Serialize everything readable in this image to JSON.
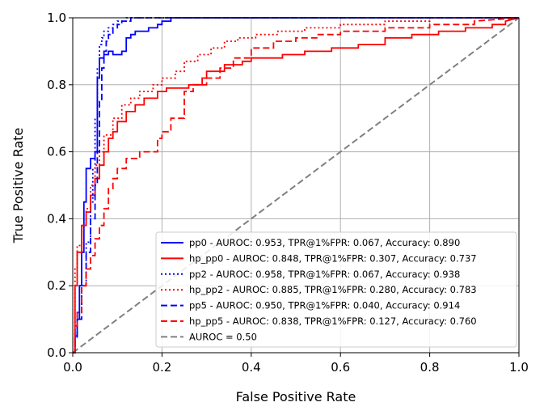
{
  "chart_data": {
    "type": "line",
    "title": "",
    "xlabel": "False Positive Rate",
    "ylabel": "True Positive Rate",
    "xlim": [
      0.0,
      1.0
    ],
    "ylim": [
      0.0,
      1.0
    ],
    "grid": true,
    "legend_position": "lower-right",
    "xticks": [
      "0.0",
      "0.2",
      "0.4",
      "0.6",
      "0.8",
      "1.0"
    ],
    "yticks": [
      "0.0",
      "0.2",
      "0.4",
      "0.6",
      "0.8",
      "1.0"
    ],
    "series": [
      {
        "name": "pp0 - AUROC: 0.953, TPR@1%FPR: 0.067, Accuracy: 0.890",
        "color": "#0000ff",
        "style": "solid",
        "x": [
          0,
          0.005,
          0.005,
          0.01,
          0.01,
          0.015,
          0.015,
          0.02,
          0.02,
          0.025,
          0.025,
          0.03,
          0.03,
          0.04,
          0.04,
          0.05,
          0.05,
          0.055,
          0.055,
          0.06,
          0.06,
          0.07,
          0.07,
          0.08,
          0.08,
          0.09,
          0.09,
          0.11,
          0.11,
          0.12,
          0.12,
          0.13,
          0.13,
          0.14,
          0.14,
          0.17,
          0.17,
          0.19,
          0.19,
          0.2,
          0.2,
          0.22,
          0.22,
          0.27,
          1.0
        ],
        "y": [
          0,
          0,
          0.05,
          0.05,
          0.1,
          0.1,
          0.2,
          0.2,
          0.3,
          0.3,
          0.45,
          0.45,
          0.55,
          0.55,
          0.58,
          0.58,
          0.6,
          0.6,
          0.82,
          0.82,
          0.88,
          0.88,
          0.89,
          0.89,
          0.9,
          0.9,
          0.89,
          0.89,
          0.9,
          0.9,
          0.94,
          0.94,
          0.95,
          0.95,
          0.96,
          0.96,
          0.97,
          0.97,
          0.98,
          0.98,
          0.99,
          0.99,
          1.0,
          1.0,
          1.0
        ]
      },
      {
        "name": "hp_pp0 - AUROC: 0.848, TPR@1%FPR: 0.307, Accuracy: 0.737",
        "color": "#ff0000",
        "style": "solid",
        "x": [
          0,
          0.005,
          0.005,
          0.01,
          0.01,
          0.02,
          0.02,
          0.03,
          0.03,
          0.04,
          0.04,
          0.05,
          0.05,
          0.06,
          0.06,
          0.07,
          0.07,
          0.08,
          0.08,
          0.09,
          0.09,
          0.1,
          0.1,
          0.12,
          0.12,
          0.14,
          0.14,
          0.16,
          0.16,
          0.19,
          0.19,
          0.21,
          0.21,
          0.26,
          0.26,
          0.29,
          0.29,
          0.3,
          0.3,
          0.34,
          0.34,
          0.38,
          0.38,
          0.4,
          0.4,
          0.43,
          0.43,
          0.47,
          0.47,
          0.52,
          0.52,
          0.58,
          0.58,
          0.64,
          0.64,
          0.7,
          0.7,
          0.76,
          0.76,
          0.82,
          0.82,
          0.88,
          0.88,
          0.94,
          0.94,
          0.97,
          0.97,
          1.0
        ],
        "y": [
          0,
          0,
          0.2,
          0.2,
          0.3,
          0.3,
          0.38,
          0.38,
          0.42,
          0.42,
          0.47,
          0.47,
          0.52,
          0.52,
          0.56,
          0.56,
          0.6,
          0.6,
          0.64,
          0.64,
          0.66,
          0.66,
          0.69,
          0.69,
          0.72,
          0.72,
          0.74,
          0.74,
          0.76,
          0.76,
          0.78,
          0.78,
          0.79,
          0.79,
          0.8,
          0.8,
          0.82,
          0.82,
          0.84,
          0.84,
          0.86,
          0.86,
          0.87,
          0.87,
          0.88,
          0.88,
          0.88,
          0.88,
          0.89,
          0.89,
          0.9,
          0.9,
          0.91,
          0.91,
          0.92,
          0.92,
          0.94,
          0.94,
          0.95,
          0.95,
          0.96,
          0.96,
          0.97,
          0.97,
          0.98,
          0.98,
          0.99,
          1.0
        ]
      },
      {
        "name": "pp2 - AUROC: 0.958, TPR@1%FPR: 0.067, Accuracy: 0.938",
        "color": "#0000ff",
        "style": "dotted",
        "x": [
          0,
          0.005,
          0.005,
          0.01,
          0.01,
          0.02,
          0.02,
          0.03,
          0.03,
          0.04,
          0.04,
          0.045,
          0.045,
          0.05,
          0.05,
          0.055,
          0.055,
          0.06,
          0.06,
          0.065,
          0.065,
          0.07,
          0.07,
          0.08,
          0.08,
          0.09,
          0.09,
          0.1,
          0.1,
          0.12,
          0.12,
          0.15,
          0.15,
          1.0
        ],
        "y": [
          0,
          0,
          0.06,
          0.06,
          0.12,
          0.12,
          0.2,
          0.2,
          0.33,
          0.33,
          0.45,
          0.45,
          0.55,
          0.55,
          0.7,
          0.7,
          0.85,
          0.85,
          0.92,
          0.92,
          0.94,
          0.94,
          0.96,
          0.96,
          0.97,
          0.97,
          0.98,
          0.98,
          0.99,
          0.99,
          1.0,
          1.0,
          1.0,
          1.0
        ]
      },
      {
        "name": "hp_pp2 - AUROC: 0.885, TPR@1%FPR: 0.280, Accuracy: 0.783",
        "color": "#ff0000",
        "style": "dotted",
        "x": [
          0,
          0.005,
          0.005,
          0.01,
          0.01,
          0.02,
          0.02,
          0.03,
          0.03,
          0.04,
          0.04,
          0.05,
          0.05,
          0.06,
          0.06,
          0.07,
          0.07,
          0.09,
          0.09,
          0.11,
          0.11,
          0.13,
          0.13,
          0.15,
          0.15,
          0.18,
          0.18,
          0.2,
          0.2,
          0.23,
          0.23,
          0.25,
          0.25,
          0.28,
          0.28,
          0.31,
          0.31,
          0.34,
          0.34,
          0.37,
          0.37,
          0.41,
          0.41,
          0.46,
          0.46,
          0.52,
          0.52,
          0.6,
          0.6,
          0.7,
          0.7,
          0.8,
          0.8,
          1.0
        ],
        "y": [
          0,
          0,
          0.25,
          0.25,
          0.32,
          0.32,
          0.38,
          0.38,
          0.43,
          0.43,
          0.5,
          0.5,
          0.56,
          0.56,
          0.6,
          0.6,
          0.65,
          0.65,
          0.7,
          0.7,
          0.74,
          0.74,
          0.76,
          0.76,
          0.78,
          0.78,
          0.8,
          0.8,
          0.82,
          0.82,
          0.84,
          0.84,
          0.87,
          0.87,
          0.89,
          0.89,
          0.91,
          0.91,
          0.93,
          0.93,
          0.94,
          0.94,
          0.95,
          0.95,
          0.96,
          0.96,
          0.97,
          0.97,
          0.98,
          0.98,
          0.99,
          0.99,
          1.0,
          1.0
        ]
      },
      {
        "name": "pp5 - AUROC: 0.950, TPR@1%FPR: 0.040, Accuracy: 0.914",
        "color": "#0000ff",
        "style": "dashed",
        "x": [
          0,
          0.005,
          0.005,
          0.01,
          0.01,
          0.02,
          0.02,
          0.03,
          0.03,
          0.04,
          0.04,
          0.05,
          0.05,
          0.055,
          0.055,
          0.06,
          0.06,
          0.065,
          0.065,
          0.07,
          0.07,
          0.075,
          0.075,
          0.08,
          0.08,
          0.09,
          0.09,
          0.1,
          0.1,
          0.11,
          0.11,
          0.13,
          0.13,
          0.15,
          0.15,
          1.0
        ],
        "y": [
          0,
          0,
          0.04,
          0.04,
          0.1,
          0.1,
          0.2,
          0.2,
          0.3,
          0.3,
          0.4,
          0.4,
          0.5,
          0.5,
          0.6,
          0.6,
          0.75,
          0.75,
          0.85,
          0.85,
          0.9,
          0.9,
          0.93,
          0.93,
          0.95,
          0.95,
          0.97,
          0.97,
          0.98,
          0.98,
          0.99,
          0.99,
          1.0,
          1.0,
          1.0,
          1.0
        ]
      },
      {
        "name": "hp_pp5 - AUROC: 0.838, TPR@1%FPR: 0.127, Accuracy: 0.760",
        "color": "#ff0000",
        "style": "dashed",
        "x": [
          0,
          0.005,
          0.005,
          0.01,
          0.01,
          0.02,
          0.02,
          0.03,
          0.03,
          0.04,
          0.04,
          0.05,
          0.05,
          0.06,
          0.06,
          0.07,
          0.07,
          0.08,
          0.08,
          0.09,
          0.09,
          0.1,
          0.1,
          0.12,
          0.12,
          0.15,
          0.15,
          0.19,
          0.19,
          0.2,
          0.2,
          0.22,
          0.22,
          0.25,
          0.25,
          0.27,
          0.27,
          0.3,
          0.3,
          0.33,
          0.33,
          0.36,
          0.36,
          0.4,
          0.4,
          0.45,
          0.45,
          0.5,
          0.5,
          0.55,
          0.55,
          0.6,
          0.6,
          0.7,
          0.7,
          0.8,
          0.8,
          0.9,
          0.9,
          1.0
        ],
        "y": [
          0,
          0,
          0.08,
          0.08,
          0.12,
          0.12,
          0.2,
          0.2,
          0.25,
          0.25,
          0.29,
          0.29,
          0.34,
          0.34,
          0.38,
          0.38,
          0.43,
          0.43,
          0.49,
          0.49,
          0.52,
          0.52,
          0.55,
          0.55,
          0.58,
          0.58,
          0.6,
          0.6,
          0.64,
          0.64,
          0.66,
          0.66,
          0.7,
          0.7,
          0.78,
          0.78,
          0.8,
          0.8,
          0.82,
          0.82,
          0.85,
          0.85,
          0.88,
          0.88,
          0.91,
          0.91,
          0.93,
          0.93,
          0.94,
          0.94,
          0.95,
          0.95,
          0.96,
          0.96,
          0.97,
          0.97,
          0.98,
          0.98,
          0.99,
          1.0
        ]
      },
      {
        "name": "AUROC = 0.50",
        "color": "#808080",
        "style": "dashed",
        "x": [
          0,
          1
        ],
        "y": [
          0,
          1
        ]
      }
    ]
  }
}
